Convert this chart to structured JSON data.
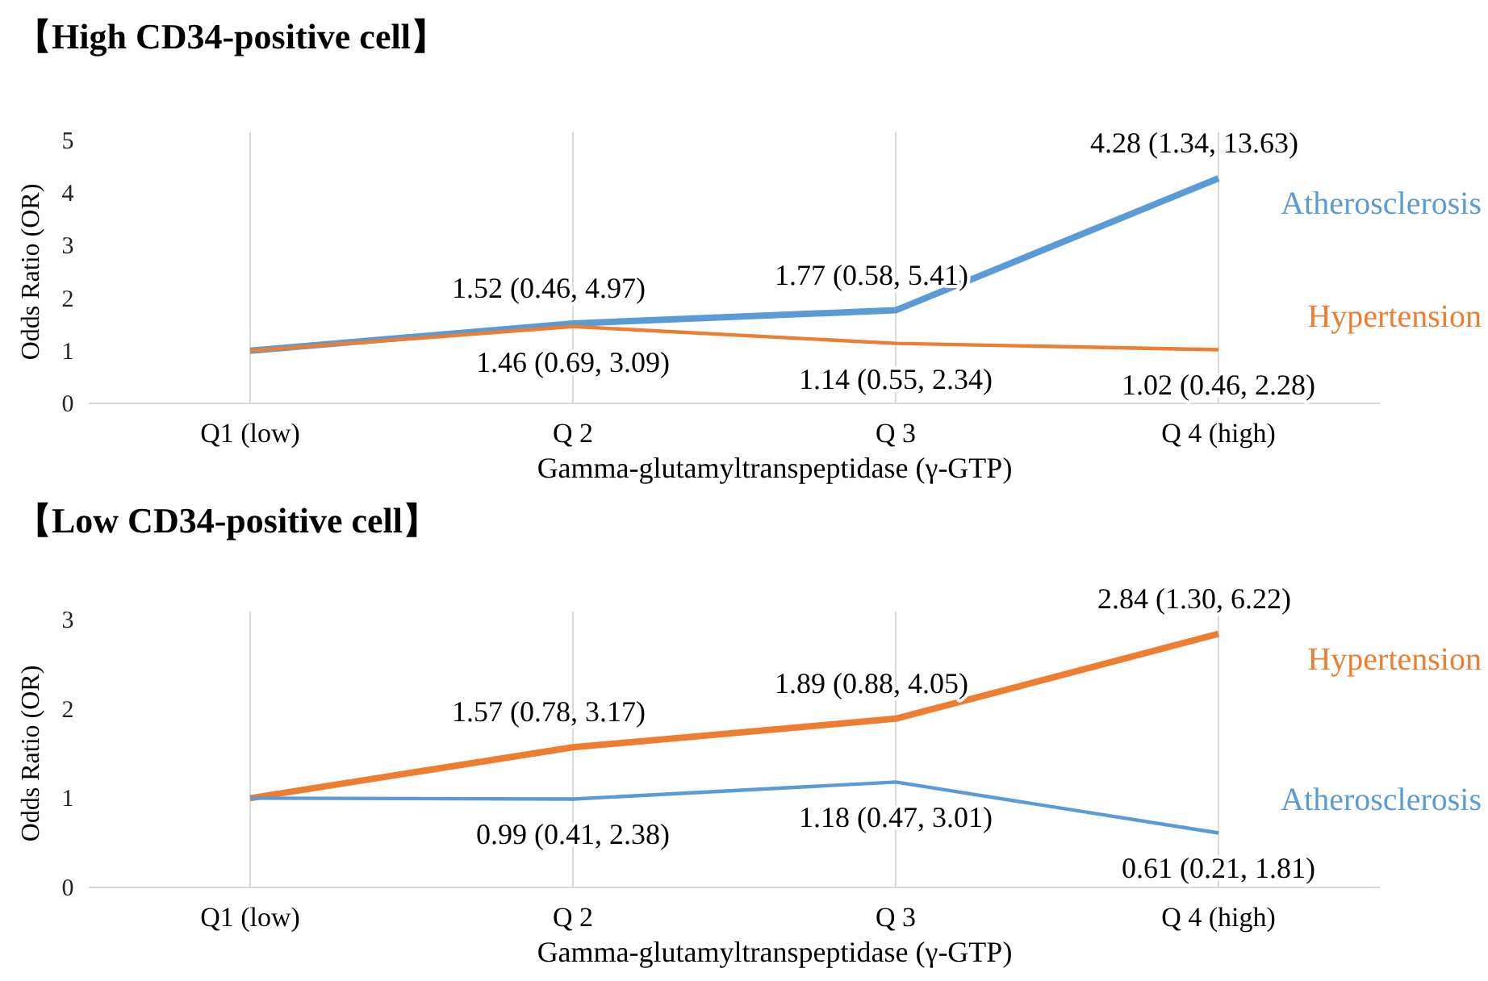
{
  "chart_data": [
    {
      "type": "line",
      "title": "【High CD34-positive cell】",
      "xlabel": "Gamma-glutamyltranspeptidase (γ-GTP)",
      "ylabel": "Odds Ratio (OR)",
      "categories": [
        "Q1 (low)",
        "Q 2",
        "Q 3",
        "Q 4 (high)"
      ],
      "ylim": [
        0,
        5
      ],
      "yticks": [
        0,
        1,
        2,
        3,
        4,
        5
      ],
      "grid": "x",
      "legend": false,
      "series": [
        {
          "name": "Atherosclerosis",
          "color": "#5b9bd5",
          "values": [
            1,
            1.52,
            1.77,
            4.28
          ],
          "value_labels": [
            null,
            "1.52 (0.46, 4.97)",
            "1.77 (0.58, 5.41)",
            "4.28 (1.34, 13.63)"
          ]
        },
        {
          "name": "Hypertension",
          "color": "#ed7d31",
          "values": [
            1,
            1.46,
            1.14,
            1.02
          ],
          "value_labels": [
            null,
            "1.46 (0.69, 3.09)",
            "1.14 (0.55, 2.34)",
            "1.02 (0.46, 2.28)"
          ]
        }
      ]
    },
    {
      "type": "line",
      "title": "【Low CD34-positive cell】",
      "xlabel": "Gamma-glutamyltranspeptidase (γ-GTP)",
      "ylabel": "Odds Ratio (OR)",
      "categories": [
        "Q1 (low)",
        "Q 2",
        "Q 3",
        "Q 4 (high)"
      ],
      "ylim": [
        0,
        3
      ],
      "yticks": [
        0,
        1,
        2,
        3
      ],
      "grid": "x",
      "legend": false,
      "series": [
        {
          "name": "Hypertension",
          "color": "#ed7d31",
          "values": [
            1,
            1.57,
            1.89,
            2.84
          ],
          "value_labels": [
            null,
            "1.57 (0.78, 3.17)",
            "1.89 (0.88, 4.05)",
            "2.84 (1.30, 6.22)"
          ]
        },
        {
          "name": "Atherosclerosis",
          "color": "#5b9bd5",
          "values": [
            1,
            0.99,
            1.18,
            0.61
          ],
          "value_labels": [
            null,
            "0.99 (0.41, 2.38)",
            "1.18 (0.47, 3.01)",
            "0.61 (0.21, 1.81)"
          ]
        }
      ]
    }
  ]
}
